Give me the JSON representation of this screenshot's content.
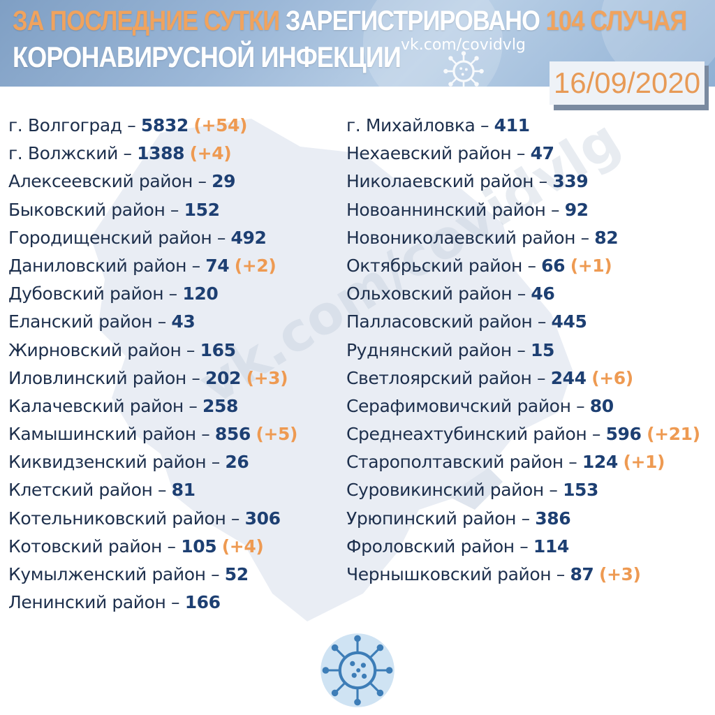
{
  "header": {
    "title_part1": "ЗА ПОСЛЕДНИЕ СУТКИ",
    "title_part2": "ЗАРЕГИСТРИРОВАНО",
    "title_part3": "104 СЛУЧАЯ",
    "title_line2": "КОРОНАВИРУСНОЙ ИНФЕКЦИИ",
    "vk_link": "vk.com/covidvlg",
    "date": "16/09/2020"
  },
  "watermark": "vk.com/covidvlg",
  "colors": {
    "accent_orange": "#ee9a52",
    "number_blue": "#1d3f72",
    "header_blue": "#8fb0d4"
  },
  "left_column": [
    {
      "name": "г. Волгоград –",
      "count": "5832",
      "increase": "(+54)"
    },
    {
      "name": "г. Волжский –",
      "count": "1388",
      "increase": "(+4)"
    },
    {
      "name": "Алексеевский район –",
      "count": "29",
      "increase": ""
    },
    {
      "name": "Быковский район –",
      "count": "152",
      "increase": ""
    },
    {
      "name": "Городищенский район –",
      "count": "492",
      "increase": ""
    },
    {
      "name": "Даниловский район –",
      "count": "74",
      "increase": "(+2)"
    },
    {
      "name": "Дубовский район –",
      "count": "120",
      "increase": ""
    },
    {
      "name": "Еланский район –",
      "count": "43",
      "increase": ""
    },
    {
      "name": "Жирновский район –",
      "count": "165",
      "increase": ""
    },
    {
      "name": "Иловлинский район –",
      "count": "202",
      "increase": "(+3)"
    },
    {
      "name": "Калачевский район –",
      "count": "258",
      "increase": ""
    },
    {
      "name": "Камышинский район –",
      "count": "856",
      "increase": "(+5)"
    },
    {
      "name": "Киквидзенский район –",
      "count": "26",
      "increase": ""
    },
    {
      "name": "Клетский район –",
      "count": "81",
      "increase": ""
    },
    {
      "name": "Котельниковский район –",
      "count": "306",
      "increase": ""
    },
    {
      "name": "Котовский район –",
      "count": "105",
      "increase": "(+4)"
    },
    {
      "name": "Кумылженский район –",
      "count": "52",
      "increase": ""
    },
    {
      "name": "Ленинский район –",
      "count": "166",
      "increase": ""
    }
  ],
  "right_column": [
    {
      "name": "г. Михайловка –",
      "count": "411",
      "increase": ""
    },
    {
      "name": "Нехаевский район –",
      "count": "47",
      "increase": ""
    },
    {
      "name": "Николаевский район –",
      "count": "339",
      "increase": ""
    },
    {
      "name": "Новоаннинский район –",
      "count": "92",
      "increase": ""
    },
    {
      "name": "Новониколаевский район –",
      "count": "82",
      "increase": ""
    },
    {
      "name": "Октябрьский район –",
      "count": "66",
      "increase": "(+1)"
    },
    {
      "name": "Ольховский район –",
      "count": "46",
      "increase": ""
    },
    {
      "name": "Палласовский район –",
      "count": "445",
      "increase": ""
    },
    {
      "name": "Руднянский район –",
      "count": "15",
      "increase": ""
    },
    {
      "name": "Светлоярский район –",
      "count": "244",
      "increase": "(+6)"
    },
    {
      "name": "Серафимовичский район –",
      "count": "80",
      "increase": ""
    },
    {
      "name": "Среднеахтубинский район –",
      "count": "596",
      "increase": "(+21)"
    },
    {
      "name": "Старополтавский район –",
      "count": "124",
      "increase": "(+1)"
    },
    {
      "name": "Суровикинский район –",
      "count": "153",
      "increase": ""
    },
    {
      "name": "Урюпинский район –",
      "count": "386",
      "increase": ""
    },
    {
      "name": "Фроловский район –",
      "count": "114",
      "increase": ""
    },
    {
      "name": "Чернышковский район –",
      "count": "87",
      "increase": "(+3)"
    }
  ]
}
